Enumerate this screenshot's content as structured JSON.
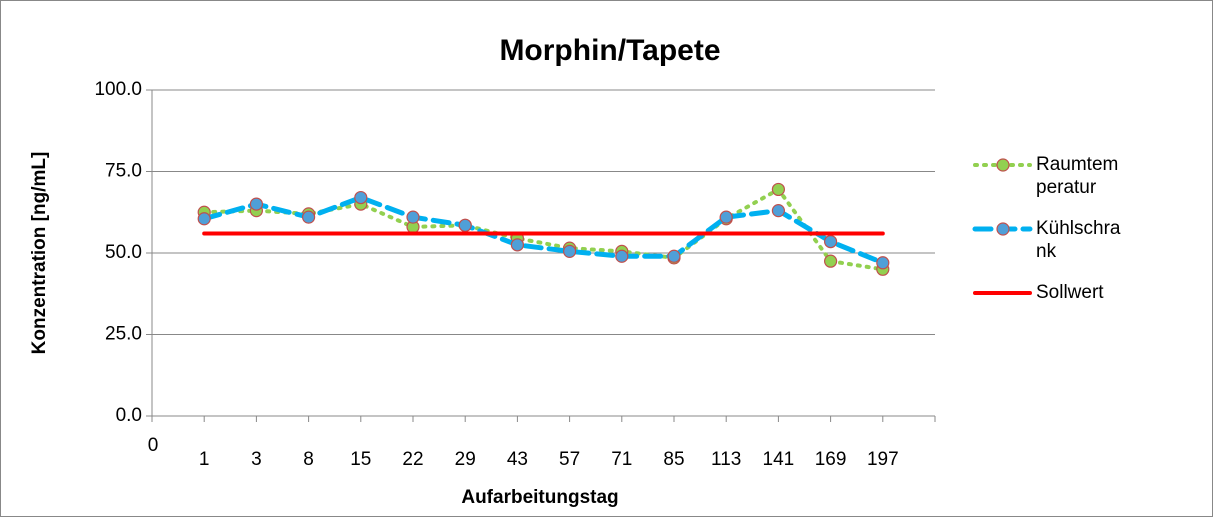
{
  "chart_data": {
    "type": "line",
    "title": "Morphin/Tapete",
    "x_label": "Aufarbeitungstag",
    "y_label": "Konzentration [ng/mL]",
    "categories": [
      "0",
      "1",
      "3",
      "8",
      "15",
      "22",
      "29",
      "43",
      "57",
      "71",
      "85",
      "113",
      "141",
      "169",
      "197"
    ],
    "series": [
      {
        "name": "Raumtemperatur",
        "color": "#92d050",
        "style": "dotted",
        "marker": true,
        "values": [
          null,
          62.5,
          63,
          62,
          65,
          58,
          58.5,
          54.5,
          51.5,
          50.5,
          48.5,
          60.5,
          69.5,
          47.5,
          45
        ]
      },
      {
        "name": "Kühlschrank",
        "color": "#00b0f0",
        "style": "dashed",
        "marker": true,
        "values": [
          null,
          60.5,
          65,
          61,
          67,
          61,
          58.5,
          52.5,
          50.5,
          49,
          49,
          61,
          63,
          53.5,
          47
        ]
      },
      {
        "name": "Sollwert",
        "color": "#ff0000",
        "style": "solid",
        "marker": false,
        "values": [
          null,
          56,
          56,
          56,
          56,
          56,
          56,
          56,
          56,
          56,
          56,
          56,
          56,
          56,
          56
        ]
      }
    ],
    "ylim": [
      0,
      100
    ],
    "yticks": [
      {
        "value": 0,
        "label": "0.0"
      },
      {
        "value": 25,
        "label": "25.0"
      },
      {
        "value": 50,
        "label": "50.0"
      },
      {
        "value": 75,
        "label": "75.0"
      },
      {
        "value": 100,
        "label": "100.0"
      }
    ],
    "grid": true,
    "legend": "right"
  }
}
